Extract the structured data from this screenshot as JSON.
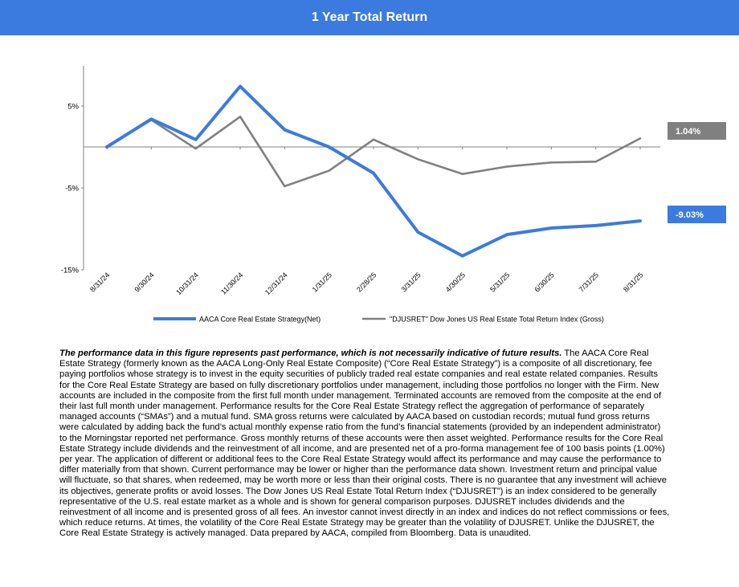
{
  "header": {
    "title": "1 Year Total Return"
  },
  "chart_data": {
    "type": "line",
    "title": "1 Year Total Return",
    "categories": [
      "8/31/24",
      "9/30/24",
      "10/31/24",
      "11/30/24",
      "12/31/24",
      "1/31/25",
      "2/28/25",
      "3/31/25",
      "4/30/25",
      "5/31/25",
      "6/30/25",
      "7/31/25",
      "8/31/25"
    ],
    "ylim": [
      -15,
      10
    ],
    "yticks": [
      5,
      -5,
      -15
    ],
    "ytick_labels": [
      "5%",
      "-5%",
      "-15%"
    ],
    "series": [
      {
        "name": "AACA Core Real Estate Strategy(Net)",
        "color": "#3b7be0",
        "values": [
          0.0,
          3.4,
          0.9,
          7.4,
          2.1,
          0.0,
          -3.2,
          -10.4,
          -13.3,
          -10.7,
          -9.9,
          -9.6,
          -9.03
        ]
      },
      {
        "name": "\"DJUSRET\" Dow Jones US Real Estate Total Return Index (Gross)",
        "color": "#808080",
        "values": [
          0.0,
          3.3,
          -0.2,
          3.7,
          -4.8,
          -2.9,
          0.9,
          -1.5,
          -3.3,
          -2.4,
          -1.9,
          -1.8,
          1.04
        ]
      }
    ],
    "end_labels": [
      {
        "text": "1.04%",
        "color": "#808080"
      },
      {
        "text": "-9.03%",
        "color": "#3b7be0"
      }
    ]
  },
  "disclaimer": {
    "bold": "The performance data in this figure represents past performance, which is not necessarily indicative of future results.",
    "body": " The AACA  Core Real Estate Strategy (formerly known as the AACA  Long-Only Real Estate Composite) (“Core Real Estate Strategy”) is a composite of all discretionary, fee paying portfolios whose strategy is to invest in the equity securities of publicly traded real estate companies and real estate related companies. Results for the Core Real Estate Strategy are based on fully discretionary portfolios under management, including those portfolios no longer with the Firm. New accounts are included in the composite from the first full month under management. Terminated accounts are removed from the composite at the end of their last full month under management. Performance results for the Core Real Estate Strategy reflect the aggregation of performance of separately managed accounts (“SMAs”) and a mutual fund. SMA  gross returns were calculated by AACA  based on custodian records; mutual fund gross returns were calculated by adding back the fund’s actual monthly expense ratio from the fund’s financial statements (provided by an independent administrator) to the Morningstar reported net performance. Gross monthly returns of these accounts were then asset weighted. Performance results for the Core Real Estate Strategy include dividends and the reinvestment of all income, and are presented net of a pro-forma management fee of 100 basis points (1.00%) per year. The application of different or additional fees to the Core Real Estate Strategy would affect its performance and may cause the performance to differ materially from that  shown. Current performance may be lower or higher than the performance data shown. Investment return and principal value will fluctuate, so that shares, when redeemed, may be worth more or less than their original costs. There is no guarantee that any investment will achieve its objectives, generate profits or avoid losses. The Dow Jones US Real Estate Total Return Index (“DJUSRET”) is an index considered to be generally representative of the U.S. real estate market as a whole and is shown for general comparison purposes. DJUSRET includes dividends and the reinvestment of all income and is presented gross of all fees. An investor cannot invest directly in an index and indices do not reflect commissions or fees, which reduce returns. At times, the volatility of the Core Real Estate Strategy may be greater than the volatility of DJUSRET. Unlike the DJUSRET, the Core Real Estate Strategy is actively  managed. Data prepared by AACA,   compiled from Bloomberg. Data is unaudited."
  }
}
